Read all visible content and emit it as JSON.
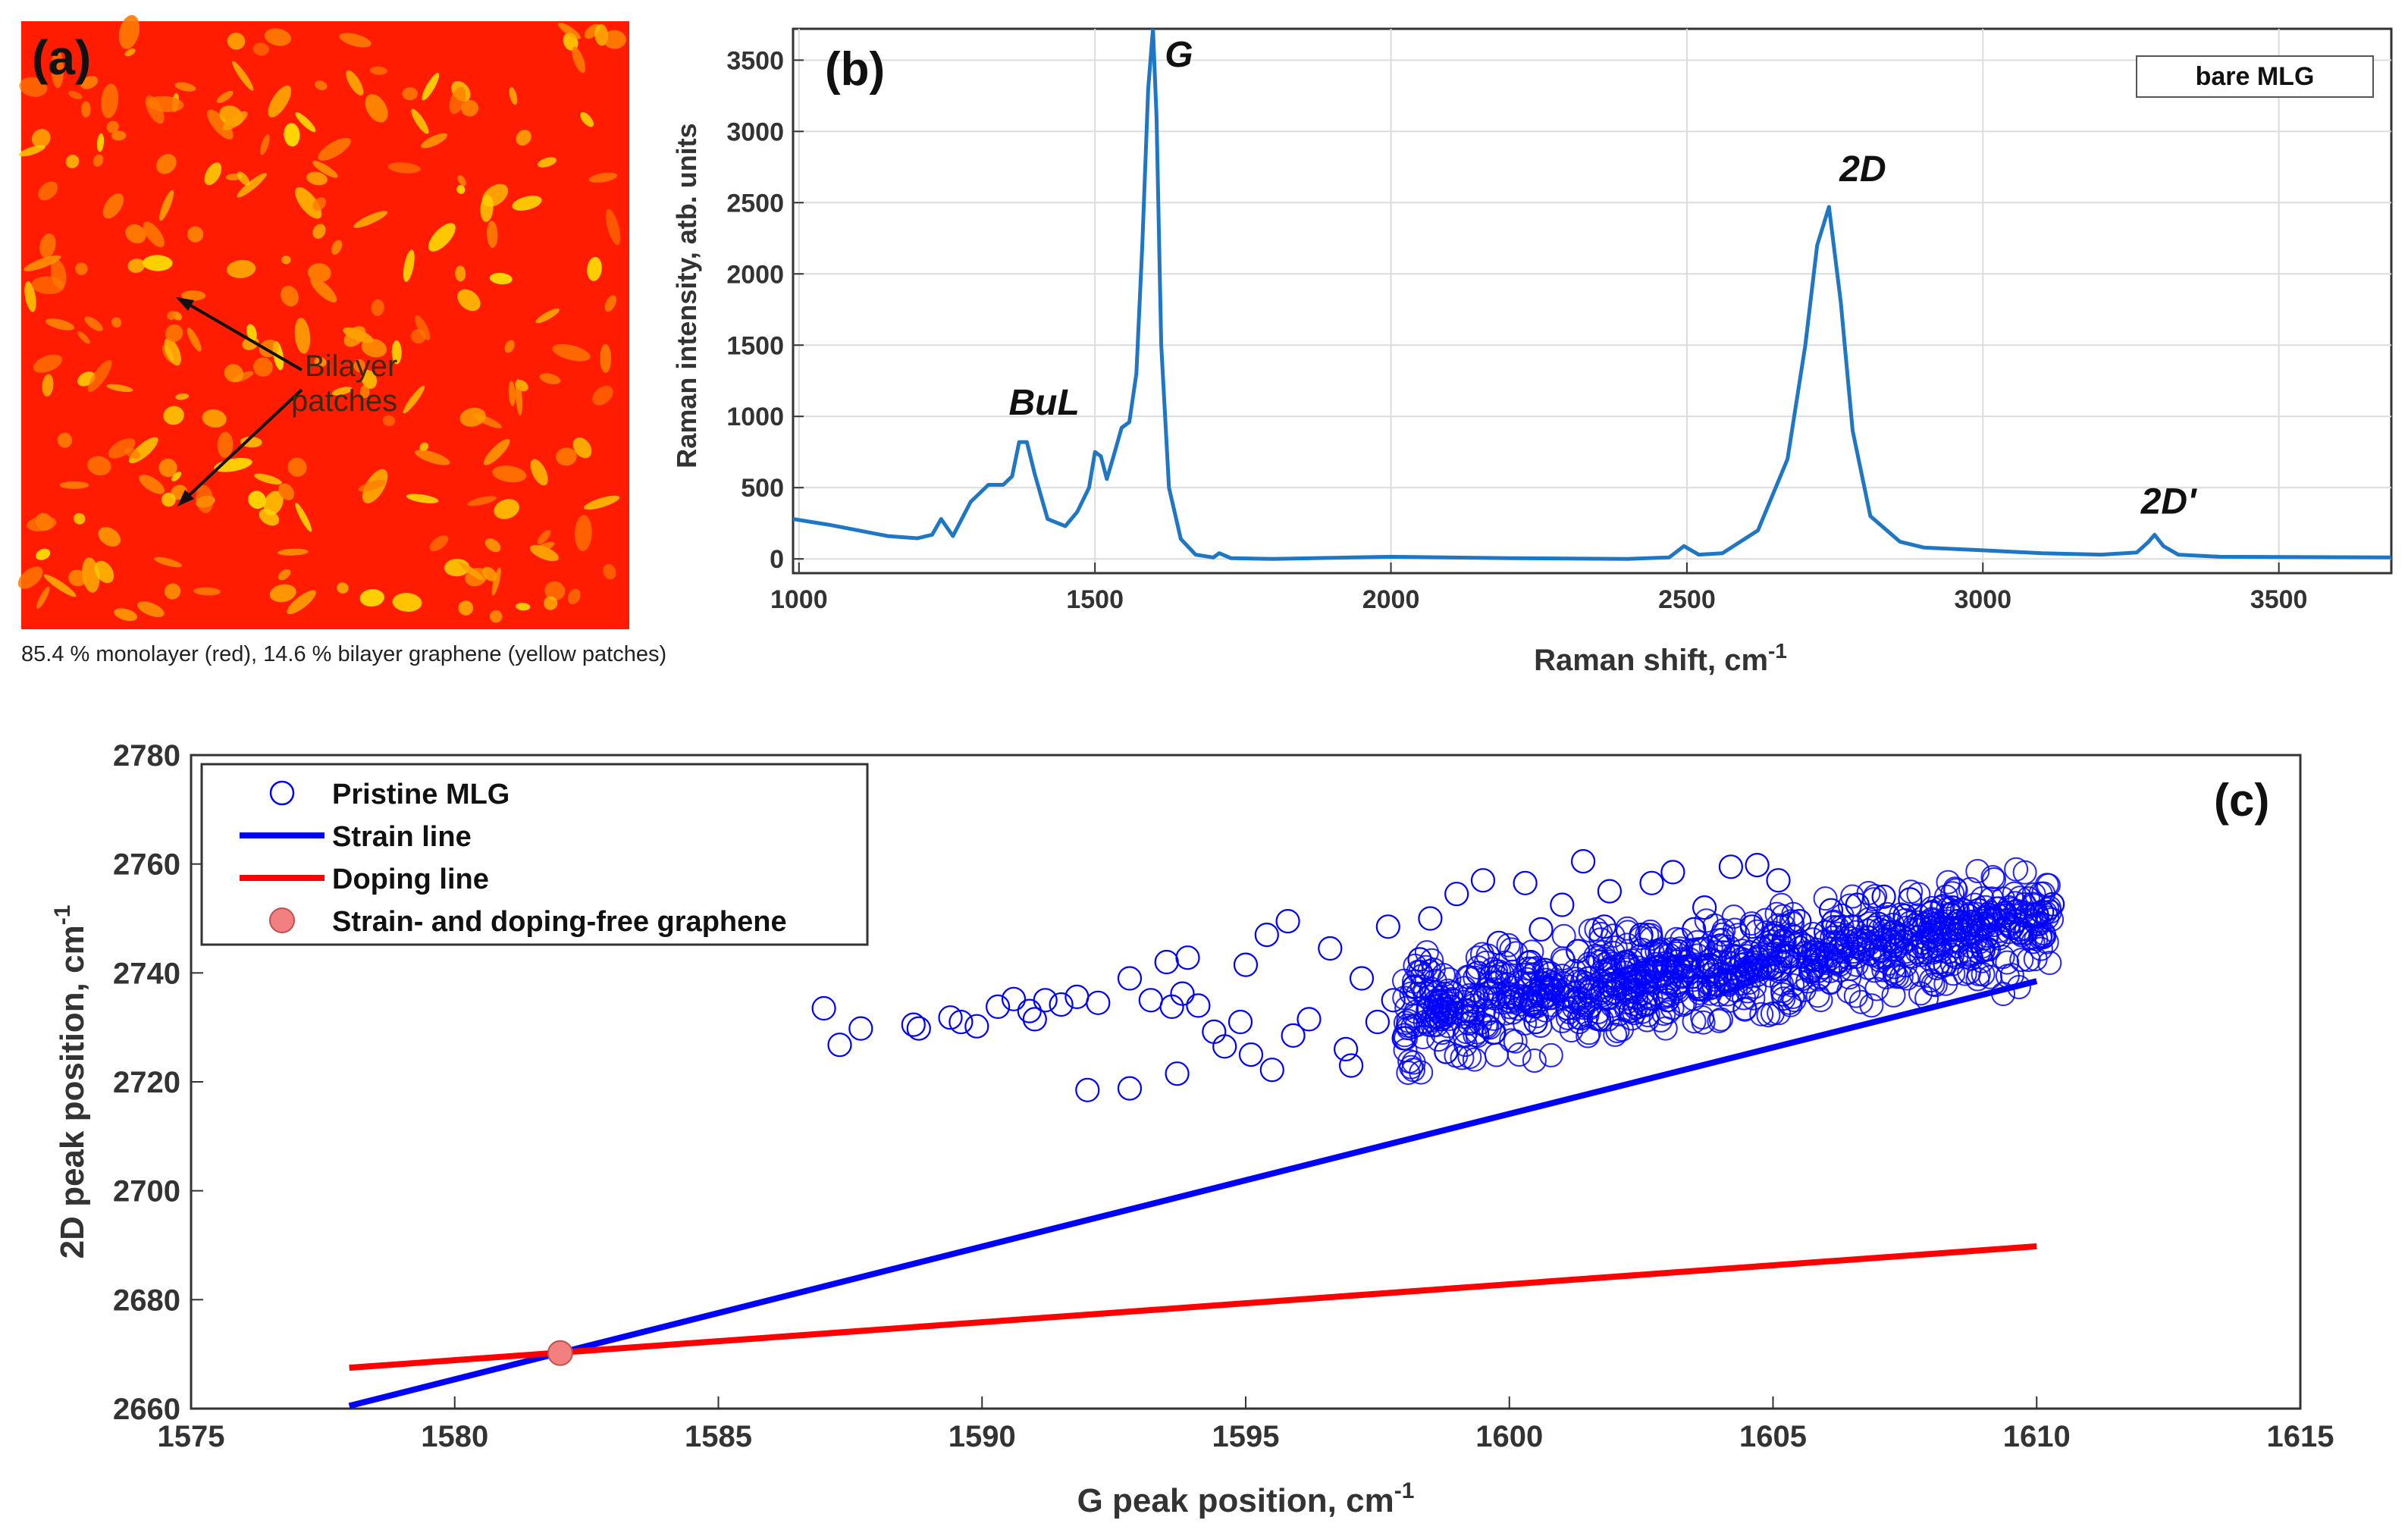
{
  "panel_a": {
    "label": "(a)",
    "annotation": [
      "Bilayer",
      "patches"
    ],
    "caption": "85.4 % monolayer (red), 14.6 % bilayer graphene (yellow patches)",
    "colors": {
      "monolayer": "#ff1c00",
      "bilayer": "#ffd400"
    }
  },
  "chart_data": [
    {
      "id": "b",
      "type": "line",
      "panel_label": "(b)",
      "xlabel": "Raman shift, cm",
      "xlabel_sup": "-1",
      "ylabel": "Raman intensity, atb. units",
      "xlim": [
        990,
        3690
      ],
      "ylim": [
        -100,
        3720
      ],
      "xticks": [
        1000,
        1500,
        2000,
        2500,
        3000,
        3500
      ],
      "yticks": [
        0,
        500,
        1000,
        1500,
        2000,
        2500,
        3000,
        3500
      ],
      "grid": true,
      "legend": "bare MLG",
      "color": "#1f77c4",
      "peaks": [
        {
          "label": "BuL",
          "x": 1380,
          "y": 820
        },
        {
          "label": "G",
          "x": 1600,
          "y": 3720
        },
        {
          "label": "2D",
          "x": 2740,
          "y": 2470
        },
        {
          "label": "2D'",
          "x": 3290,
          "y": 170
        }
      ],
      "series": [
        {
          "name": "bare MLG",
          "x": [
            990,
            1050,
            1100,
            1150,
            1200,
            1225,
            1240,
            1260,
            1290,
            1320,
            1345,
            1360,
            1372,
            1385,
            1398,
            1420,
            1450,
            1470,
            1490,
            1500,
            1510,
            1520,
            1530,
            1545,
            1558,
            1570,
            1580,
            1590,
            1598,
            1604,
            1612,
            1625,
            1645,
            1670,
            1700,
            1710,
            1730,
            1800,
            2000,
            2200,
            2400,
            2470,
            2495,
            2520,
            2560,
            2620,
            2670,
            2700,
            2720,
            2740,
            2760,
            2780,
            2810,
            2860,
            2900,
            3000,
            3100,
            3200,
            3260,
            3280,
            3290,
            3305,
            3330,
            3400,
            3690
          ],
          "y": [
            280,
            240,
            200,
            160,
            145,
            170,
            280,
            160,
            400,
            520,
            520,
            580,
            820,
            820,
            600,
            280,
            230,
            330,
            500,
            750,
            720,
            560,
            700,
            920,
            960,
            1300,
            2200,
            3300,
            3720,
            3100,
            1500,
            500,
            140,
            30,
            10,
            40,
            5,
            0,
            15,
            5,
            0,
            10,
            90,
            30,
            40,
            200,
            700,
            1500,
            2200,
            2470,
            1800,
            900,
            300,
            120,
            80,
            60,
            40,
            30,
            45,
            120,
            170,
            90,
            30,
            15,
            10
          ]
        }
      ]
    },
    {
      "id": "c",
      "type": "scatter",
      "panel_label": "(c)",
      "xlabel": "G peak position, cm",
      "xlabel_sup": "-1",
      "ylabel": "2D peak position, cm",
      "ylabel_sup": "-1",
      "xlim": [
        1575,
        1615
      ],
      "ylim": [
        2660,
        2780
      ],
      "xticks": [
        1575,
        1580,
        1585,
        1590,
        1595,
        1600,
        1605,
        1610,
        1615
      ],
      "yticks": [
        2660,
        2680,
        2700,
        2720,
        2740,
        2760,
        2780
      ],
      "legend": [
        {
          "label": "Pristine MLG",
          "kind": "marker"
        },
        {
          "label": "Strain line",
          "kind": "line",
          "color": "#0000ff"
        },
        {
          "label": "Doping line",
          "kind": "line",
          "color": "#ff0000"
        },
        {
          "label": "Strain- and doping-free graphene",
          "kind": "dot",
          "color": "#f28080"
        }
      ],
      "strain_line": {
        "x": [
          1578,
          1610
        ],
        "y": [
          2660.5,
          2738.5
        ],
        "color": "#0000ff"
      },
      "doping_line": {
        "x": [
          1578,
          1610
        ],
        "y": [
          2667.5,
          2689.8
        ],
        "color": "#ff0000"
      },
      "free_point": {
        "x": 1582,
        "y": 2670.2
      },
      "scatter_color": "#0000ff",
      "series": [
        {
          "name": "Pristine MLG",
          "points": [
            [
              1587.0,
              2733.5
            ],
            [
              1587.3,
              2726.8
            ],
            [
              1587.7,
              2729.8
            ],
            [
              1588.7,
              2730.5
            ],
            [
              1588.8,
              2729.8
            ],
            [
              1589.4,
              2731.8
            ],
            [
              1589.6,
              2731.0
            ],
            [
              1589.9,
              2730.2
            ],
            [
              1590.3,
              2733.8
            ],
            [
              1590.6,
              2735.2
            ],
            [
              1590.9,
              2733.0
            ],
            [
              1591.0,
              2731.5
            ],
            [
              1591.2,
              2735.0
            ],
            [
              1591.5,
              2734.2
            ],
            [
              1591.8,
              2735.6
            ],
            [
              1592.0,
              2718.5
            ],
            [
              1592.2,
              2734.5
            ],
            [
              1592.8,
              2739.0
            ],
            [
              1592.8,
              2718.8
            ],
            [
              1593.2,
              2735.0
            ],
            [
              1593.5,
              2742.0
            ],
            [
              1593.6,
              2733.8
            ],
            [
              1593.7,
              2721.5
            ],
            [
              1593.8,
              2736.2
            ],
            [
              1593.9,
              2742.8
            ],
            [
              1594.1,
              2734.0
            ],
            [
              1594.4,
              2729.2
            ],
            [
              1594.6,
              2726.5
            ],
            [
              1594.9,
              2731.0
            ],
            [
              1595.0,
              2741.5
            ],
            [
              1595.1,
              2725.0
            ],
            [
              1595.4,
              2747.0
            ],
            [
              1595.5,
              2722.2
            ],
            [
              1595.8,
              2749.5
            ],
            [
              1595.9,
              2728.5
            ],
            [
              1596.2,
              2731.5
            ],
            [
              1596.6,
              2744.5
            ],
            [
              1596.9,
              2726.0
            ],
            [
              1597.0,
              2723.0
            ],
            [
              1597.2,
              2739.0
            ],
            [
              1597.5,
              2731.0
            ],
            [
              1597.7,
              2748.5
            ],
            [
              1597.8,
              2735.0
            ],
            [
              1598.0,
              2728.0
            ],
            [
              1598.2,
              2737.5
            ],
            [
              1598.3,
              2742.5
            ],
            [
              1598.5,
              2750.0
            ],
            [
              1598.7,
              2731.5
            ],
            [
              1598.8,
              2725.5
            ],
            [
              1599.0,
              2754.5
            ],
            [
              1599.2,
              2733.0
            ],
            [
              1599.4,
              2740.0
            ],
            [
              1599.5,
              2757.0
            ],
            [
              1599.7,
              2729.0
            ],
            [
              1599.8,
              2745.5
            ],
            [
              1600.0,
              2735.5
            ],
            [
              1600.3,
              2756.5
            ],
            [
              1600.4,
              2742.0
            ],
            [
              1600.5,
              2731.0
            ],
            [
              1600.6,
              2748.0
            ],
            [
              1600.8,
              2737.0
            ],
            [
              1601.0,
              2752.5
            ],
            [
              1601.1,
              2733.5
            ],
            [
              1601.3,
              2744.0
            ],
            [
              1601.4,
              2760.5
            ],
            [
              1601.5,
              2739.0
            ],
            [
              1601.7,
              2731.5
            ],
            [
              1601.8,
              2748.5
            ],
            [
              1601.9,
              2755.0
            ],
            [
              1602.0,
              2736.5
            ],
            [
              1602.2,
              2742.0
            ],
            [
              1602.3,
              2733.0
            ],
            [
              1602.5,
              2747.0
            ],
            [
              1602.6,
              2738.5
            ],
            [
              1602.7,
              2756.5
            ],
            [
              1602.8,
              2741.0
            ],
            [
              1603.0,
              2735.0
            ],
            [
              1603.1,
              2758.5
            ],
            [
              1603.2,
              2744.0
            ],
            [
              1603.3,
              2739.5
            ],
            [
              1603.5,
              2748.0
            ],
            [
              1603.6,
              2737.0
            ],
            [
              1603.7,
              2752.0
            ],
            [
              1603.8,
              2741.5
            ],
            [
              1604.0,
              2745.0
            ],
            [
              1604.1,
              2738.5
            ],
            [
              1604.2,
              2759.5
            ],
            [
              1604.3,
              2743.0
            ],
            [
              1604.5,
              2740.0
            ],
            [
              1604.6,
              2748.5
            ],
            [
              1604.7,
              2759.8
            ],
            [
              1604.8,
              2744.5
            ],
            [
              1605.0,
              2741.0
            ],
            [
              1605.1,
              2757.0
            ],
            [
              1605.2,
              2746.0
            ],
            [
              1605.3,
              2743.0
            ],
            [
              1605.5,
              2749.5
            ],
            [
              1605.6,
              2745.0
            ],
            [
              1605.8,
              2742.5
            ],
            [
              1606.0,
              2747.5
            ],
            [
              1606.1,
              2751.5
            ],
            [
              1606.3,
              2745.0
            ],
            [
              1606.5,
              2748.5
            ],
            [
              1606.6,
              2752.5
            ],
            [
              1606.8,
              2746.5
            ],
            [
              1607.0,
              2749.0
            ],
            [
              1607.1,
              2754.0
            ],
            [
              1607.3,
              2747.5
            ],
            [
              1607.5,
              2750.5
            ],
            [
              1607.6,
              2753.5
            ],
            [
              1607.8,
              2748.5
            ],
            [
              1608.0,
              2751.0
            ],
            [
              1608.2,
              2749.0
            ],
            [
              1608.4,
              2752.0
            ],
            [
              1608.5,
              2749.5
            ],
            [
              1608.7,
              2750.5
            ],
            [
              1608.9,
              2751.5
            ],
            [
              1609.0,
              2749.0
            ],
            [
              1609.2,
              2750.0
            ],
            [
              1609.4,
              2751.0
            ],
            [
              1609.6,
              2749.5
            ],
            [
              1609.8,
              2750.5
            ],
            [
              1610.0,
              2750.8
            ],
            [
              1610.1,
              2751.2
            ],
            [
              1610.3,
              2752.6
            ]
          ]
        }
      ]
    }
  ]
}
